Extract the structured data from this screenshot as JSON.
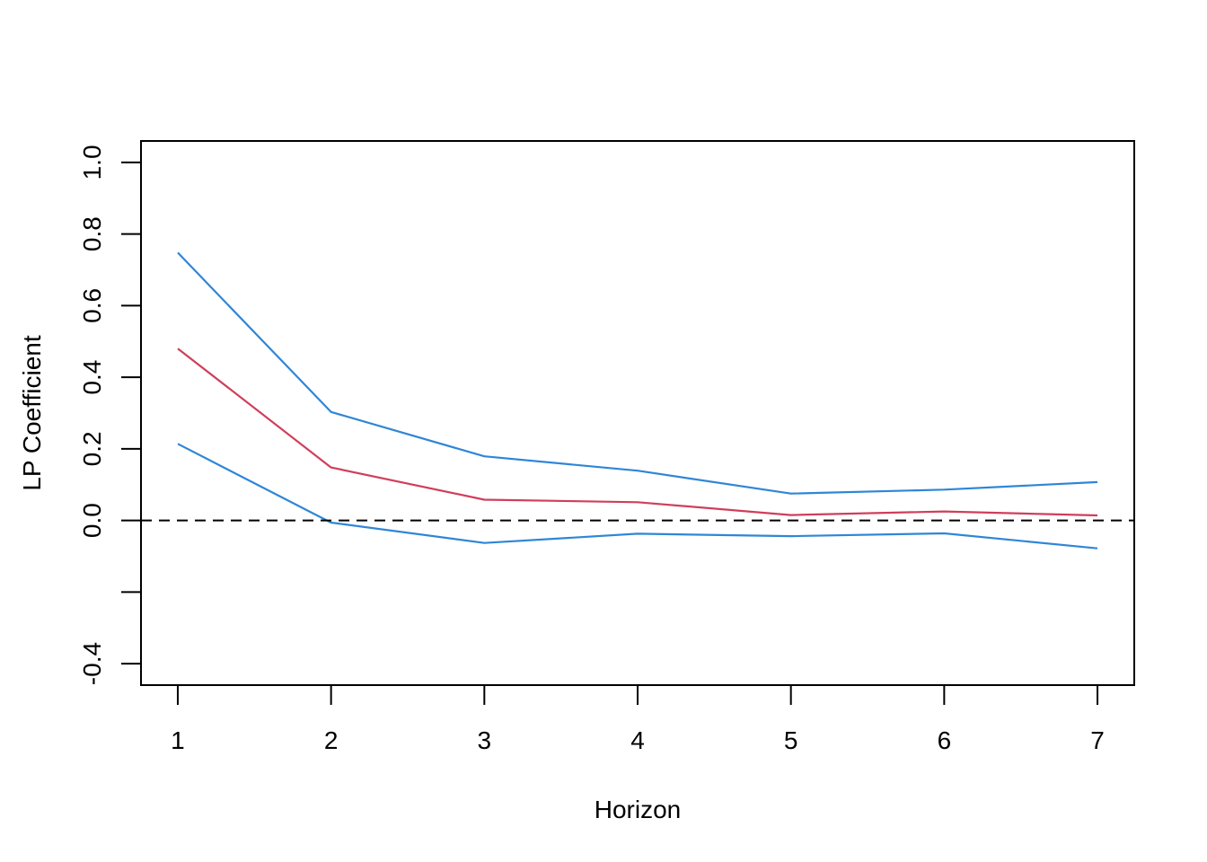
{
  "chart_data": {
    "type": "line",
    "title": "",
    "xlabel": "Horizon",
    "ylabel": "LP Coefficient",
    "x": [
      1,
      2,
      3,
      4,
      5,
      6,
      7
    ],
    "xlim": [
      0.76,
      7.24
    ],
    "ylim": [
      -0.46,
      1.06
    ],
    "x_ticks": [
      "1",
      "2",
      "3",
      "4",
      "5",
      "6",
      "7"
    ],
    "y_ticks": [
      -0.4,
      -0.2,
      0.0,
      0.2,
      0.4,
      0.6,
      0.8,
      1.0
    ],
    "y_tick_labels": [
      "-0.4",
      "",
      "0.0",
      "0.2",
      "0.4",
      "0.6",
      "0.8",
      "1.0"
    ],
    "reference_line": {
      "y": 0,
      "style": "dashed",
      "color": "#000000"
    },
    "grid": false,
    "series": [
      {
        "role": "upper",
        "color": "#2f86d6",
        "values": [
          0.748,
          0.303,
          0.179,
          0.139,
          0.075,
          0.086,
          0.107
        ]
      },
      {
        "role": "estimate",
        "color": "#cf3f5b",
        "values": [
          0.48,
          0.148,
          0.058,
          0.051,
          0.015,
          0.025,
          0.014
        ]
      },
      {
        "role": "lower",
        "color": "#2f86d6",
        "values": [
          0.214,
          -0.006,
          -0.063,
          -0.037,
          -0.044,
          -0.036,
          -0.078
        ]
      }
    ]
  }
}
